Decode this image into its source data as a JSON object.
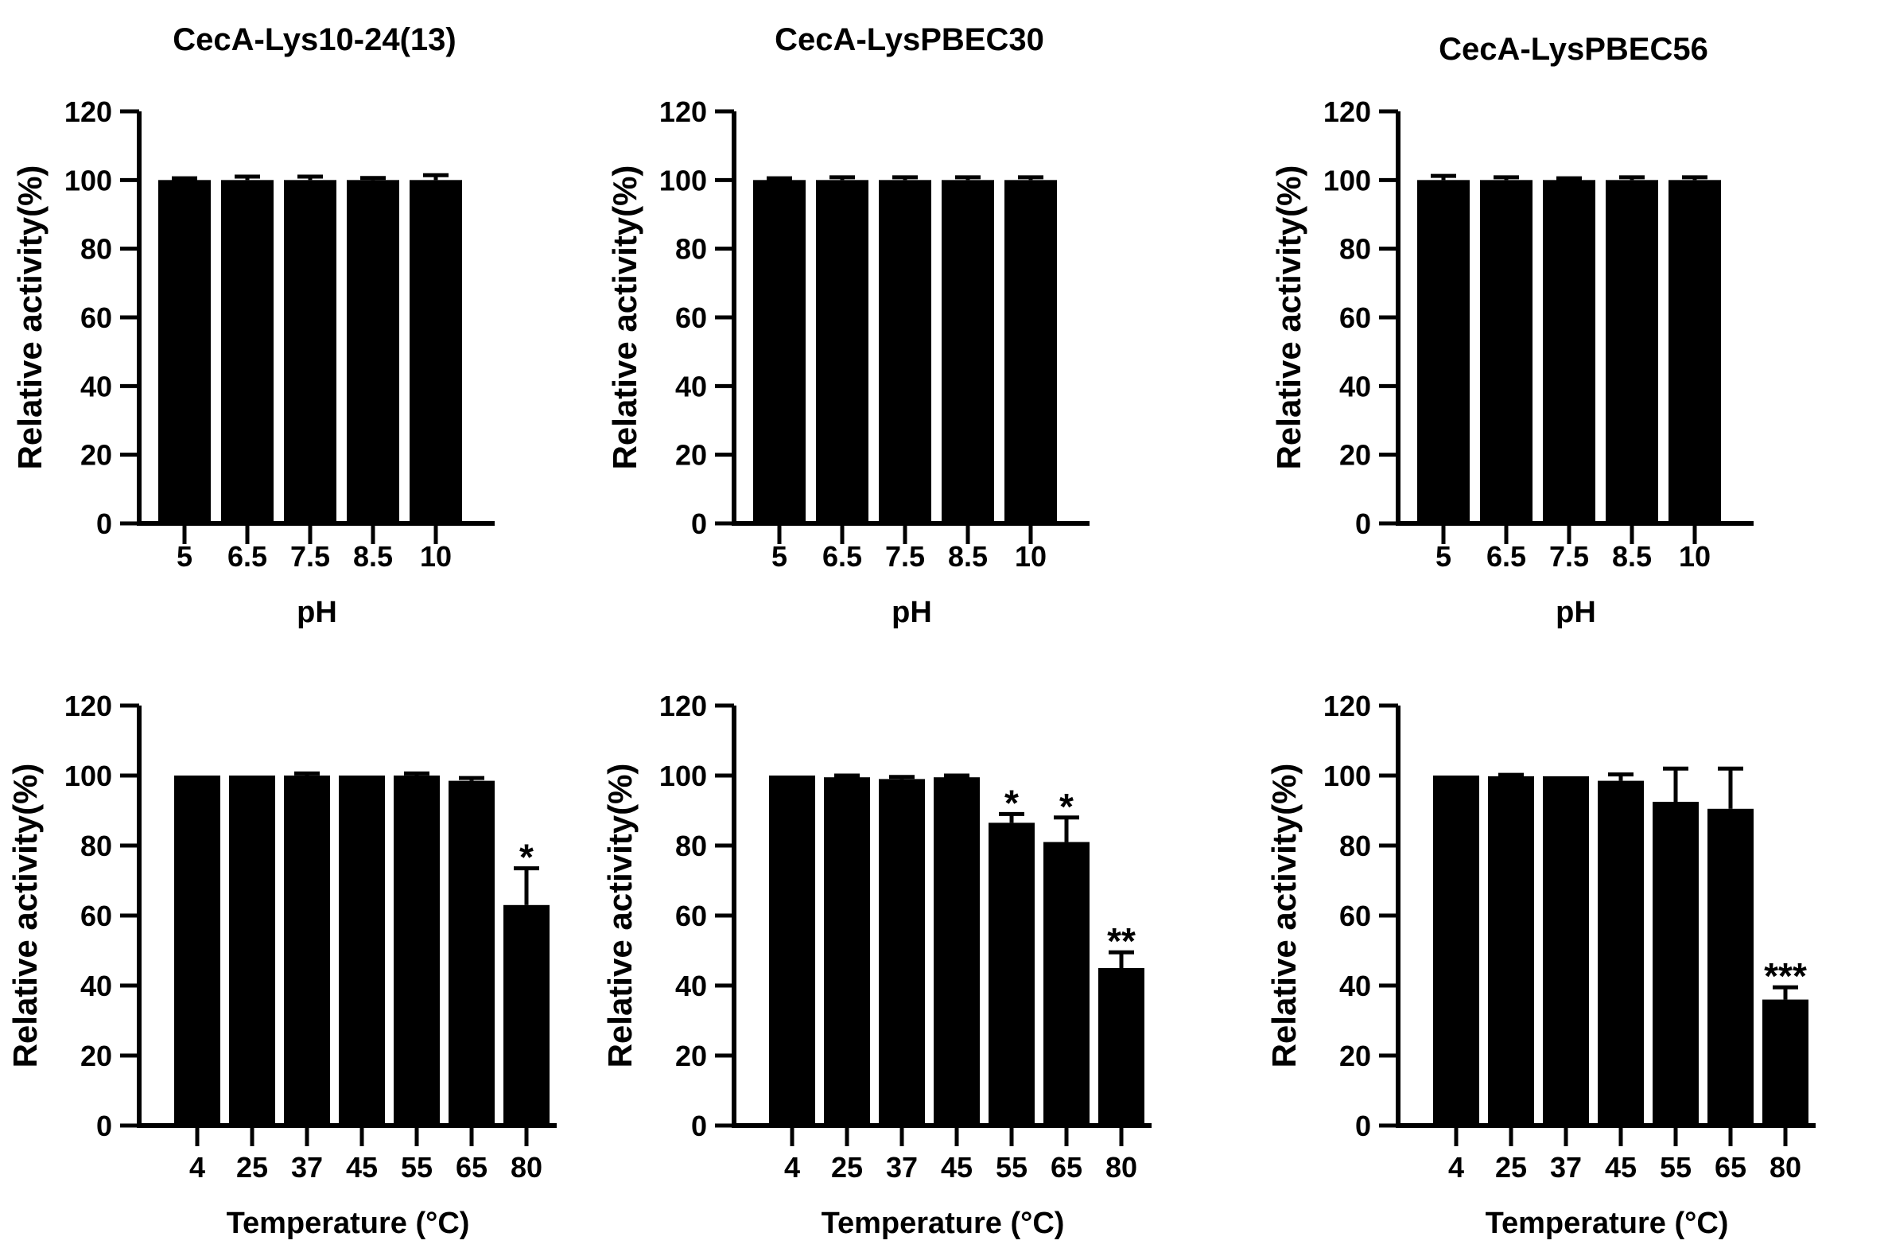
{
  "figure": {
    "background": "#ffffff",
    "bar_color": "#000000",
    "axis_color": "#000000",
    "text_color": "#000000",
    "ylabel": "Relative activity(%)"
  },
  "chart_data": [
    {
      "id": "ph-ceca-lys10-24-13",
      "type": "bar",
      "title": "CecA-Lys10-24(13)",
      "xlabel": "pH",
      "ylabel": "Relative activity(%)",
      "ylim": [
        0,
        120
      ],
      "yticks": [
        0,
        20,
        40,
        60,
        80,
        100,
        120
      ],
      "grid": false,
      "legend": false,
      "categories": [
        "5",
        "6.5",
        "7.5",
        "8.5",
        "10"
      ],
      "values": [
        100,
        100,
        100,
        100,
        100
      ],
      "errors": [
        0.5,
        1,
        1,
        0.6,
        1.4
      ],
      "significance": [
        "",
        "",
        "",
        "",
        ""
      ]
    },
    {
      "id": "ph-ceca-lyspbec30",
      "type": "bar",
      "title": "CecA-LysPBEC30",
      "xlabel": "pH",
      "ylabel": "Relative activity(%)",
      "ylim": [
        0,
        120
      ],
      "yticks": [
        0,
        20,
        40,
        60,
        80,
        100,
        120
      ],
      "grid": false,
      "legend": false,
      "categories": [
        "5",
        "6.5",
        "7.5",
        "8.5",
        "10"
      ],
      "values": [
        100,
        100,
        100,
        100,
        100
      ],
      "errors": [
        0.5,
        0.8,
        0.8,
        0.8,
        0.8
      ],
      "significance": [
        "",
        "",
        "",
        "",
        ""
      ]
    },
    {
      "id": "ph-ceca-lyspbec56",
      "type": "bar",
      "title": "CecA-LysPBEC56",
      "xlabel": "pH",
      "ylabel": "Relative activity(%)",
      "ylim": [
        0,
        120
      ],
      "yticks": [
        0,
        20,
        40,
        60,
        80,
        100,
        120
      ],
      "grid": false,
      "legend": false,
      "categories": [
        "5",
        "6.5",
        "7.5",
        "8.5",
        "10"
      ],
      "values": [
        100,
        100,
        100,
        100,
        100
      ],
      "errors": [
        1.2,
        0.8,
        0.5,
        0.8,
        0.8
      ],
      "significance": [
        "",
        "",
        "",
        "",
        ""
      ]
    },
    {
      "id": "temp-ceca-lys10-24-13",
      "type": "bar",
      "title": "",
      "xlabel": "Temperature (°C)",
      "ylabel": "Relative activity(%)",
      "ylim": [
        0,
        120
      ],
      "yticks": [
        0,
        20,
        40,
        60,
        80,
        100,
        120
      ],
      "grid": false,
      "legend": false,
      "categories": [
        "4",
        "25",
        "37",
        "45",
        "55",
        "65",
        "80"
      ],
      "values": [
        100,
        100,
        100,
        100,
        100,
        98.5,
        63
      ],
      "errors": [
        0,
        0,
        0.6,
        0,
        0.6,
        0.8,
        10.5
      ],
      "significance": [
        "",
        "",
        "",
        "",
        "",
        "",
        "*"
      ]
    },
    {
      "id": "temp-ceca-lyspbec30",
      "type": "bar",
      "title": "",
      "xlabel": "Temperature (°C)",
      "ylabel": "Relative activity(%)",
      "ylim": [
        0,
        120
      ],
      "yticks": [
        0,
        20,
        40,
        60,
        80,
        100,
        120
      ],
      "grid": false,
      "legend": false,
      "categories": [
        "4",
        "25",
        "37",
        "45",
        "55",
        "65",
        "80"
      ],
      "values": [
        100,
        99.5,
        99,
        99.5,
        86.5,
        81,
        45
      ],
      "errors": [
        0,
        0.5,
        0.6,
        0.5,
        2.5,
        7,
        4.5
      ],
      "significance": [
        "",
        "",
        "",
        "",
        "*",
        "*",
        "**"
      ]
    },
    {
      "id": "temp-ceca-lyspbec56",
      "type": "bar",
      "title": "",
      "xlabel": "Temperature (°C)",
      "ylabel": "Relative activity(%)",
      "ylim": [
        0,
        120
      ],
      "yticks": [
        0,
        20,
        40,
        60,
        80,
        100,
        120
      ],
      "grid": false,
      "legend": false,
      "categories": [
        "4",
        "25",
        "37",
        "45",
        "55",
        "65",
        "80"
      ],
      "values": [
        100,
        99.8,
        99.8,
        98.5,
        92.5,
        90.5,
        36
      ],
      "errors": [
        0,
        0.4,
        0,
        1.8,
        9.5,
        11.5,
        3.5
      ],
      "significance": [
        "",
        "",
        "",
        "",
        "",
        "",
        "***"
      ]
    }
  ]
}
